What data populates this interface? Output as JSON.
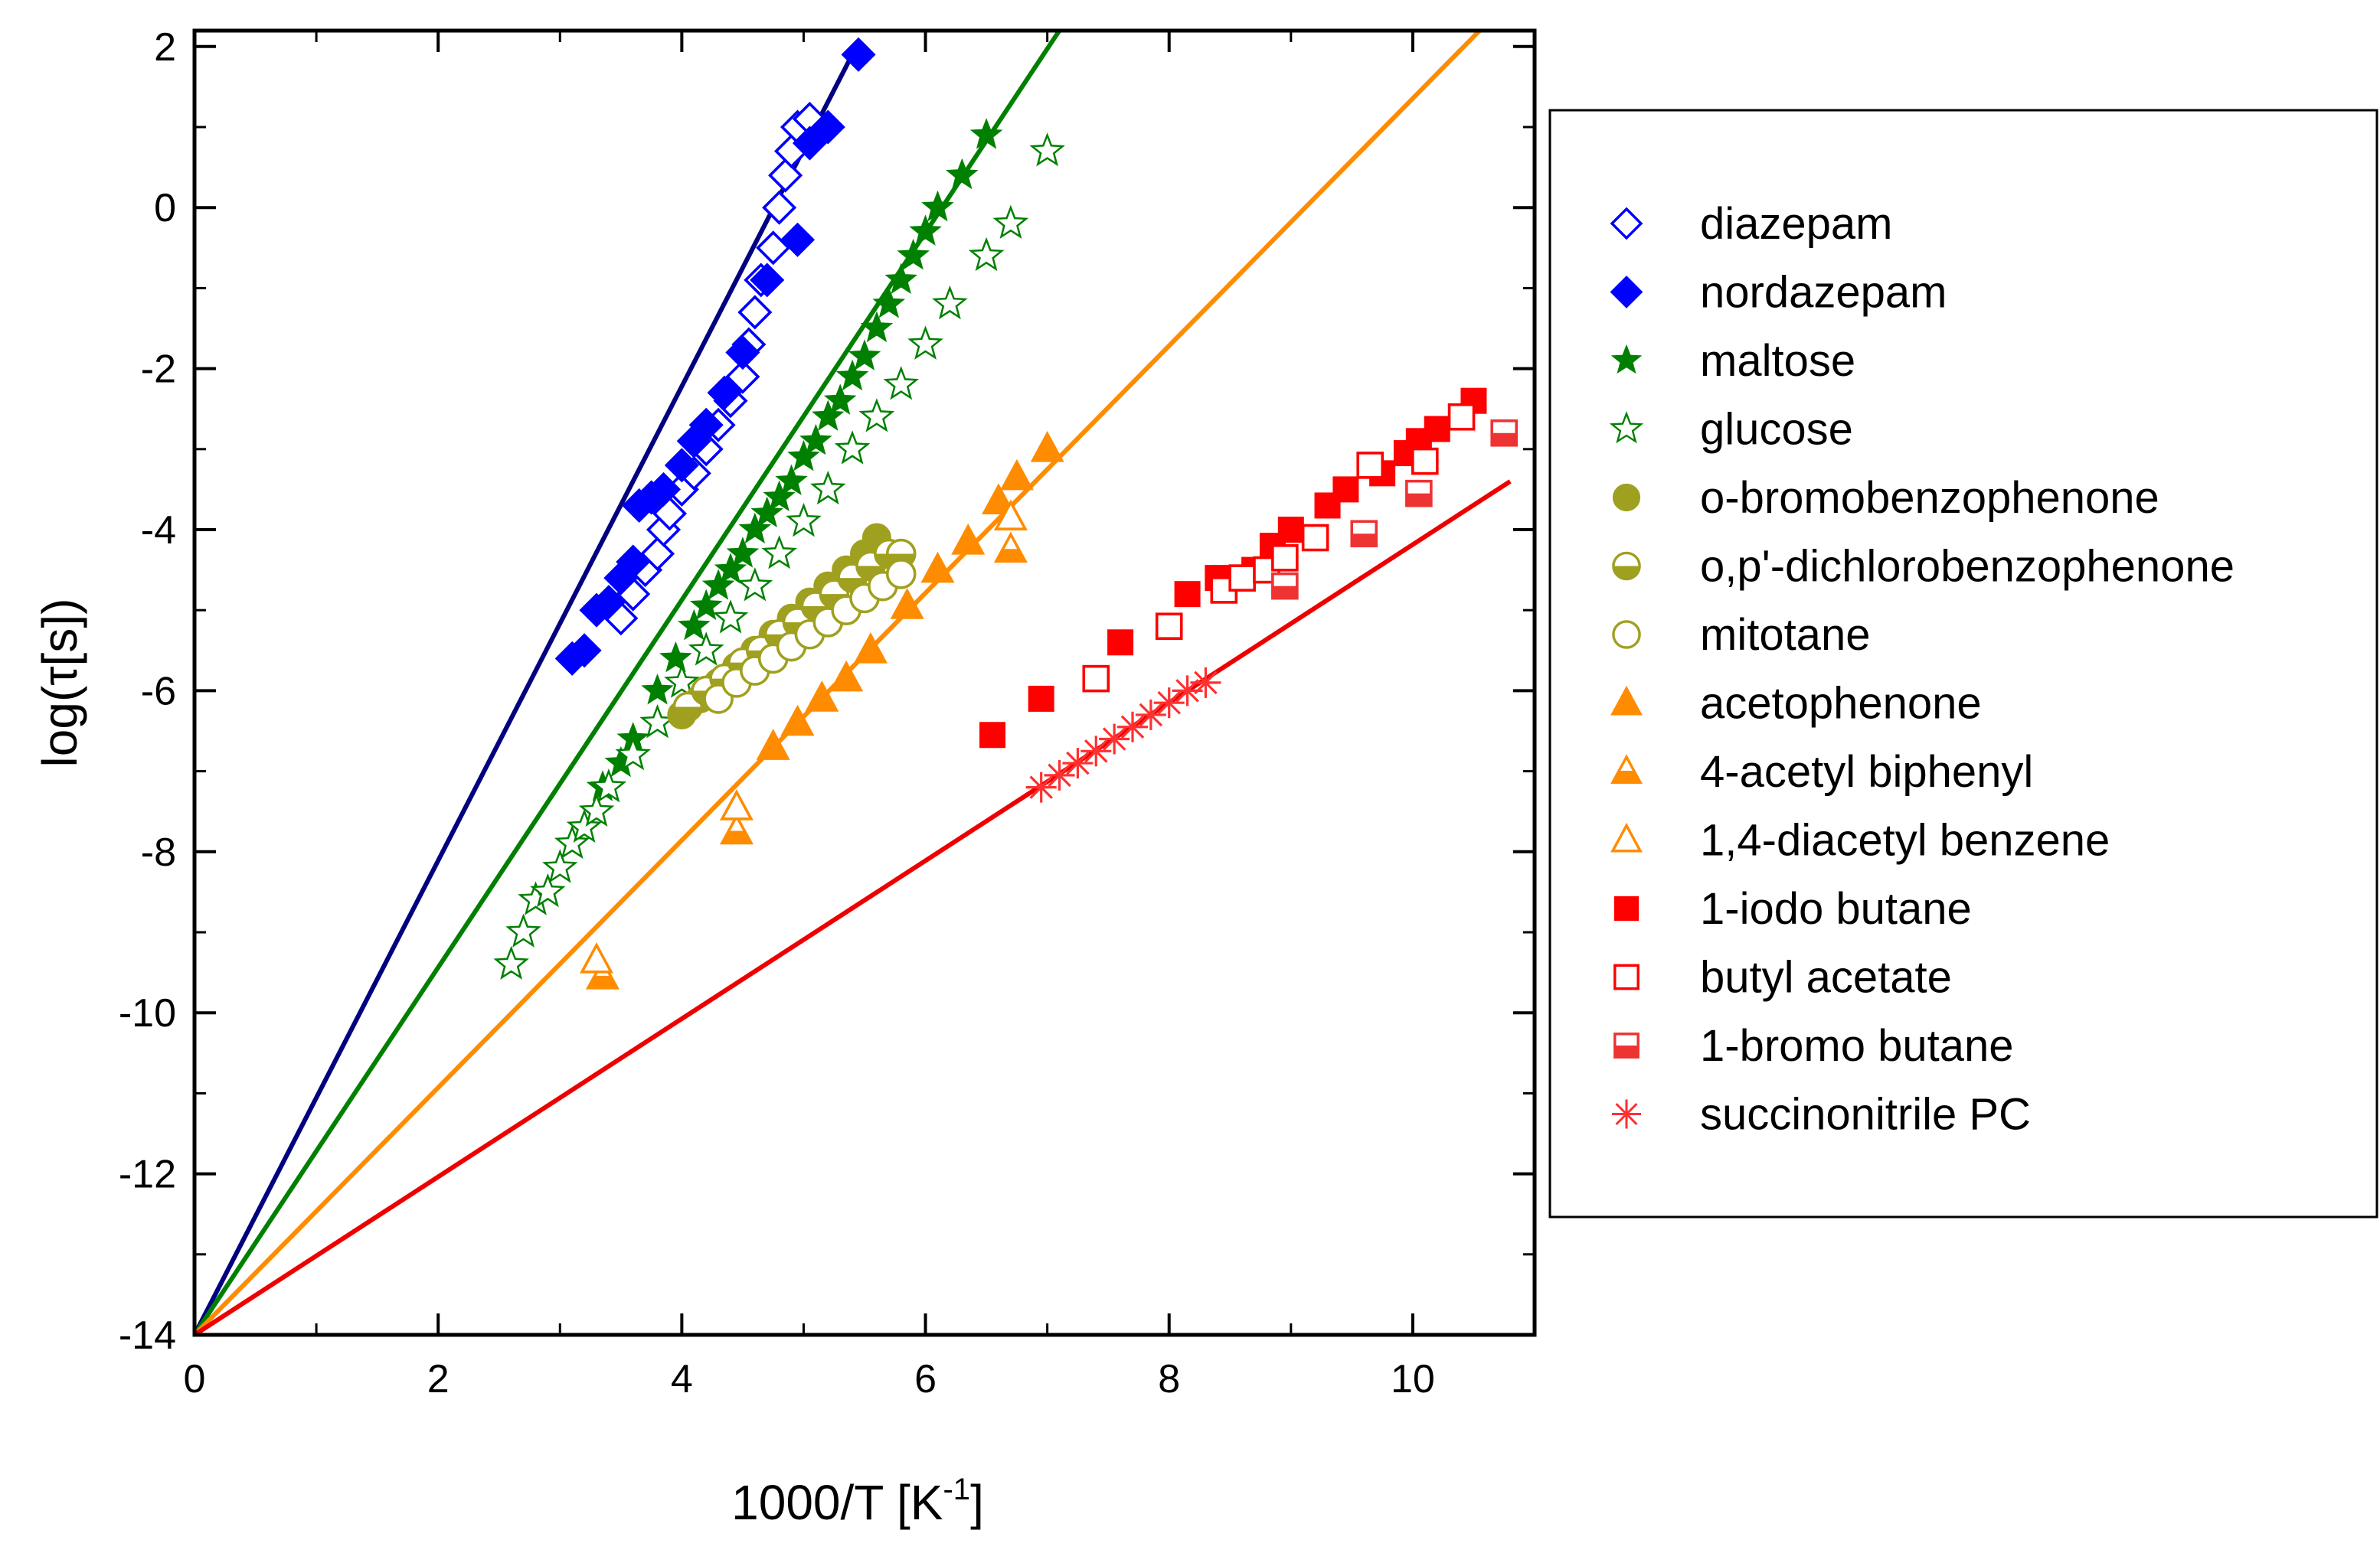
{
  "chart_data": {
    "type": "scatter",
    "xlabel": {
      "main": "1000/T [K",
      "sup": "-1",
      "end": "]"
    },
    "ylabel": "log(τ[s])",
    "xlim": [
      0,
      11
    ],
    "ylim": [
      -14,
      2.2
    ],
    "x_ticks": [
      0,
      2,
      4,
      6,
      8,
      10
    ],
    "y_ticks": [
      -14,
      -12,
      -10,
      -8,
      -6,
      -4,
      -2,
      0,
      2
    ],
    "x_tick_labels": [
      "0",
      "2",
      "4",
      "6",
      "8",
      "10"
    ],
    "y_tick_labels": [
      "-14",
      "-12",
      "-10",
      "-8",
      "-6",
      "-4",
      "-2",
      "0",
      "2"
    ],
    "legend_position": "right",
    "lines": [
      {
        "color": "#000080",
        "x": [
          0,
          5.45
        ],
        "y": [
          -14,
          2.05
        ]
      },
      {
        "color": "#008000",
        "x": [
          0,
          7.1
        ],
        "y": [
          -14,
          2.2
        ]
      },
      {
        "color": "#ff8c00",
        "x": [
          0,
          10.55
        ],
        "y": [
          -14,
          2.2
        ]
      },
      {
        "color": "#ee0000",
        "x": [
          0,
          10.8
        ],
        "y": [
          -14,
          -3.4
        ]
      }
    ],
    "series": [
      {
        "name": "diazepam",
        "marker": "diamond-open",
        "color": "#0000ff",
        "x": [
          3.5,
          3.6,
          3.7,
          3.8,
          3.85,
          3.9,
          4.0,
          4.1,
          4.2,
          4.3,
          4.4,
          4.5,
          4.55,
          4.6,
          4.65,
          4.75,
          4.8,
          4.85,
          4.9,
          4.95,
          5.05
        ],
        "y": [
          -5.1,
          -4.8,
          -4.5,
          -4.3,
          -4.0,
          -3.8,
          -3.5,
          -3.3,
          -3.0,
          -2.7,
          -2.4,
          -2.1,
          -1.7,
          -1.3,
          -0.9,
          -0.5,
          0.0,
          0.4,
          0.7,
          1.0,
          1.1
        ]
      },
      {
        "name": "nordazepam",
        "marker": "diamond",
        "color": "#0000ff",
        "x": [
          3.1,
          3.2,
          3.3,
          3.4,
          3.5,
          3.6,
          3.65,
          3.75,
          3.85,
          4.0,
          4.1,
          4.2,
          4.35,
          4.5,
          4.7,
          4.95,
          5.05,
          5.2,
          5.45
        ],
        "y": [
          -5.6,
          -5.5,
          -5.0,
          -4.9,
          -4.6,
          -4.4,
          -3.7,
          -3.6,
          -3.5,
          -3.2,
          -2.9,
          -2.7,
          -2.3,
          -1.8,
          -0.9,
          -0.4,
          0.8,
          1.0,
          1.9
        ]
      },
      {
        "name": "maltose",
        "marker": "star",
        "color": "#008000",
        "x": [
          3.35,
          3.5,
          3.6,
          3.8,
          3.95,
          4.1,
          4.2,
          4.3,
          4.4,
          4.5,
          4.6,
          4.7,
          4.8,
          4.9,
          5.0,
          5.1,
          5.2,
          5.3,
          5.4,
          5.5,
          5.6,
          5.7,
          5.8,
          5.9,
          6.0,
          6.1,
          6.3,
          6.5
        ],
        "y": [
          -7.2,
          -6.9,
          -6.6,
          -6.0,
          -5.6,
          -5.2,
          -4.95,
          -4.7,
          -4.5,
          -4.3,
          -4.0,
          -3.8,
          -3.6,
          -3.4,
          -3.1,
          -2.9,
          -2.6,
          -2.4,
          -2.1,
          -1.85,
          -1.5,
          -1.2,
          -0.9,
          -0.6,
          -0.3,
          0.0,
          0.4,
          0.9
        ]
      },
      {
        "name": "glucose",
        "marker": "star-open",
        "color": "#008000",
        "x": [
          2.6,
          2.7,
          2.8,
          2.9,
          3.0,
          3.1,
          3.2,
          3.3,
          3.4,
          3.6,
          3.8,
          4.0,
          4.2,
          4.4,
          4.6,
          4.8,
          5.0,
          5.2,
          5.4,
          5.6,
          5.8,
          6.0,
          6.2,
          6.5,
          6.7,
          7.0
        ],
        "y": [
          -9.4,
          -9.0,
          -8.6,
          -8.5,
          -8.2,
          -7.9,
          -7.7,
          -7.5,
          -7.2,
          -6.8,
          -6.4,
          -5.9,
          -5.5,
          -5.1,
          -4.7,
          -4.3,
          -3.9,
          -3.5,
          -3.0,
          -2.6,
          -2.2,
          -1.7,
          -1.2,
          -0.6,
          -0.2,
          0.7
        ]
      },
      {
        "name": "o-bromobenzophenone",
        "marker": "circle",
        "color": "#a0a020",
        "x": [
          4.0,
          4.15,
          4.3,
          4.45,
          4.6,
          4.75,
          4.9,
          5.05,
          5.2,
          5.35,
          5.5,
          5.6
        ],
        "y": [
          -6.3,
          -6.1,
          -5.9,
          -5.7,
          -5.5,
          -5.3,
          -5.1,
          -4.9,
          -4.7,
          -4.5,
          -4.3,
          -4.1
        ]
      },
      {
        "name": "o,p'-dichlorobenzophenone",
        "marker": "circle-half",
        "color": "#a0a020",
        "x": [
          4.05,
          4.2,
          4.35,
          4.5,
          4.65,
          4.8,
          4.95,
          5.1,
          5.25,
          5.4,
          5.55,
          5.7,
          5.8
        ],
        "y": [
          -6.2,
          -6.0,
          -5.85,
          -5.65,
          -5.5,
          -5.3,
          -5.15,
          -4.95,
          -4.8,
          -4.6,
          -4.45,
          -4.3,
          -4.3
        ]
      },
      {
        "name": "mitotane",
        "marker": "circle-open",
        "color": "#a0a020",
        "x": [
          4.3,
          4.45,
          4.6,
          4.75,
          4.9,
          5.05,
          5.2,
          5.35,
          5.5,
          5.65,
          5.8
        ],
        "y": [
          -6.1,
          -5.9,
          -5.75,
          -5.6,
          -5.45,
          -5.3,
          -5.15,
          -5.0,
          -4.85,
          -4.7,
          -4.55
        ]
      },
      {
        "name": "acetophenone",
        "marker": "triangle",
        "color": "#ff8c00",
        "x": [
          4.75,
          4.95,
          5.15,
          5.35,
          5.55,
          5.85,
          6.1,
          6.35,
          6.6,
          6.75,
          7.0
        ],
        "y": [
          -6.7,
          -6.4,
          -6.1,
          -5.85,
          -5.5,
          -4.95,
          -4.5,
          -4.15,
          -3.65,
          -3.35,
          -3.0
        ]
      },
      {
        "name": "4-acetyl biphenyl",
        "marker": "triangle-half",
        "color": "#ff8c00",
        "x": [
          3.35,
          4.45,
          6.7
        ],
        "y": [
          -9.55,
          -7.75,
          -4.25
        ]
      },
      {
        "name": "1,4-diacetyl benzene",
        "marker": "triangle-open",
        "color": "#ff8c00",
        "x": [
          3.3,
          4.45,
          6.7
        ],
        "y": [
          -9.35,
          -7.45,
          -3.85
        ]
      },
      {
        "name": "1-iodo butane",
        "marker": "square",
        "color": "#ff0000",
        "x": [
          6.55,
          6.95,
          7.6,
          8.15,
          8.4,
          8.7,
          8.85,
          9.0,
          9.3,
          9.45,
          9.75,
          9.95,
          10.05,
          10.2,
          10.5
        ],
        "y": [
          -6.55,
          -6.1,
          -5.4,
          -4.8,
          -4.6,
          -4.5,
          -4.2,
          -4.0,
          -3.7,
          -3.5,
          -3.3,
          -3.05,
          -2.9,
          -2.75,
          -2.4
        ]
      },
      {
        "name": "butyl acetate",
        "marker": "square-open",
        "color": "#ff0000",
        "x": [
          7.4,
          8.0,
          8.45,
          8.6,
          8.8,
          8.95,
          9.2,
          9.65,
          10.1,
          10.4
        ],
        "y": [
          -5.85,
          -5.2,
          -4.75,
          -4.6,
          -4.5,
          -4.35,
          -4.1,
          -3.2,
          -3.15,
          -2.6
        ]
      },
      {
        "name": "1-bromo butane",
        "marker": "square-half",
        "color": "#ee3333",
        "x": [
          8.95,
          9.6,
          10.05,
          10.75
        ],
        "y": [
          -4.7,
          -4.05,
          -3.55,
          -2.8
        ]
      },
      {
        "name": "succinonitrile PC",
        "marker": "asterisk",
        "color": "#ff3030",
        "x": [
          6.95,
          7.1,
          7.25,
          7.4,
          7.55,
          7.7,
          7.85,
          8.0,
          8.15,
          8.3
        ],
        "y": [
          -7.2,
          -7.05,
          -6.9,
          -6.75,
          -6.6,
          -6.45,
          -6.3,
          -6.15,
          -6.0,
          -5.9
        ]
      }
    ]
  }
}
